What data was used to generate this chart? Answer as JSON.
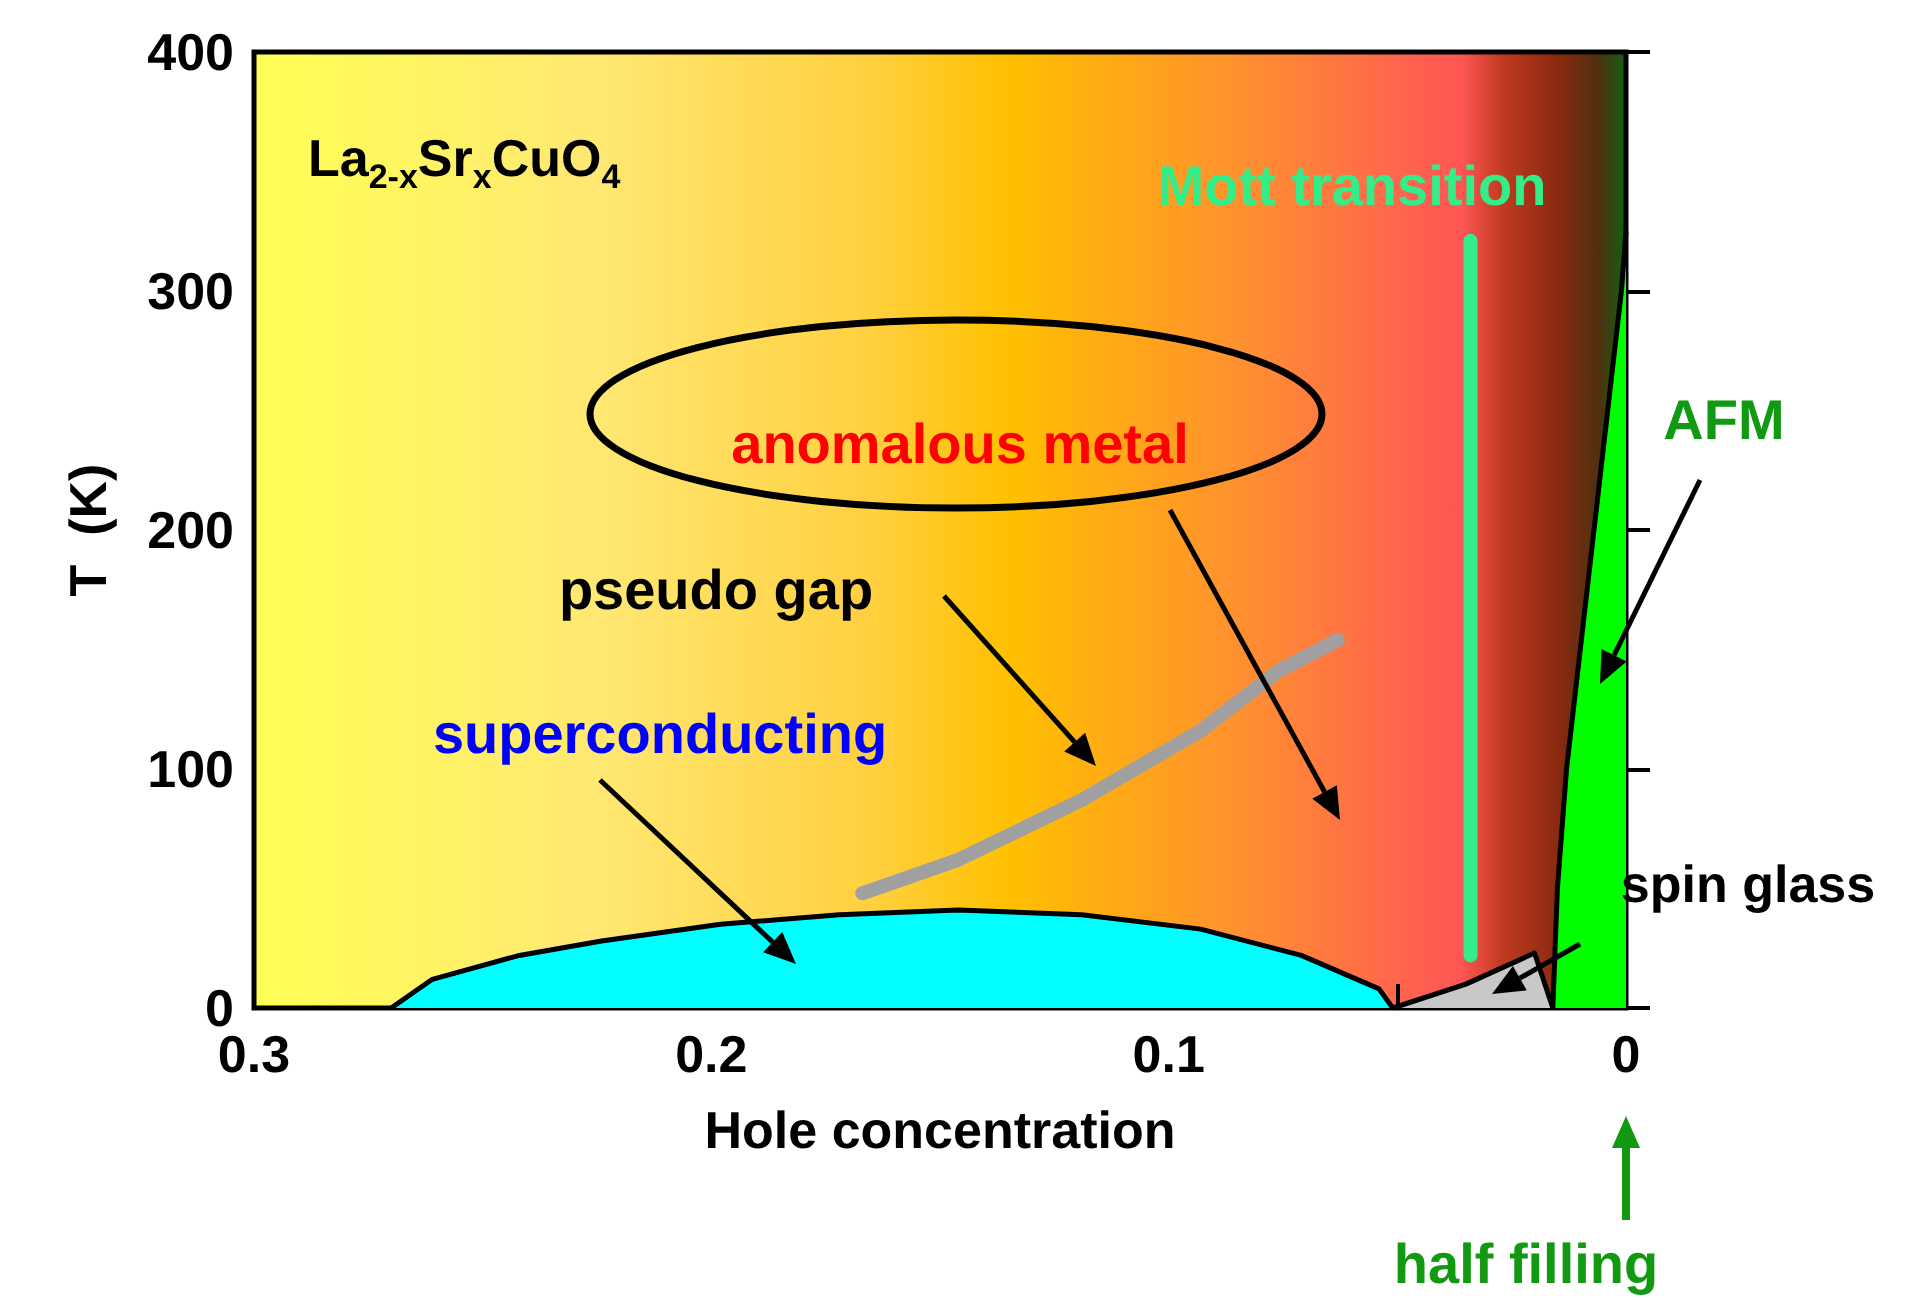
{
  "chart_data": {
    "type": "area",
    "title": "La$_{2-x}$Sr$_{x}$CuO$_{4}$",
    "xlabel": "Hole concentration",
    "ylabel": "T  (K)",
    "xlim": [
      0.3,
      0
    ],
    "xticks": [
      0.3,
      {
        "value": 0.25,
        "label": null
      },
      0.2,
      {
        "value": 0.15,
        "label": null
      },
      0.1,
      {
        "value": 0.05,
        "label": null
      },
      0
    ],
    "ylim": [
      0,
      400
    ],
    "yticks": [
      0,
      100,
      200,
      300,
      400
    ],
    "grid": false,
    "series": [
      {
        "color": "#00ffff",
        "x": [
          0.27,
          0.261,
          0.242,
          0.224,
          0.198,
          0.172,
          0.146,
          0.119,
          0.093,
          0.071,
          0.054,
          0.051
        ],
        "values": [
          0,
          12,
          22,
          28,
          35,
          39,
          41,
          39,
          33,
          22,
          8,
          0
        ]
      },
      {
        "color": "#c8c8c8",
        "x": [
          0.051,
          0.035,
          0.02,
          0.016
        ],
        "values": [
          0,
          10,
          23,
          0
        ]
      },
      {
        "color": "#00ff00",
        "x": [
          0,
          0.001,
          0.004,
          0.007,
          0.01,
          0.013,
          0.015,
          0.016
        ],
        "values": [
          325,
          300,
          250,
          200,
          150,
          100,
          50,
          0
        ]
      },
      {
        "type": "line",
        "color": "#a0a0a0",
        "x": [
          0.167,
          0.146,
          0.119,
          0.093,
          0.076,
          0.063
        ],
        "values": [
          48,
          62,
          87,
          116,
          141,
          154
        ]
      },
      {
        "type": "line",
        "color": "#33ee88",
        "x": [
          0.034,
          0.034
        ],
        "values": [
          22,
          321
        ]
      }
    ],
    "annotations": [
      "anomalous metal",
      "pseudo gap",
      "superconducting",
      "AFM",
      "spin glass",
      "Mott transition",
      "half filling"
    ]
  }
}
